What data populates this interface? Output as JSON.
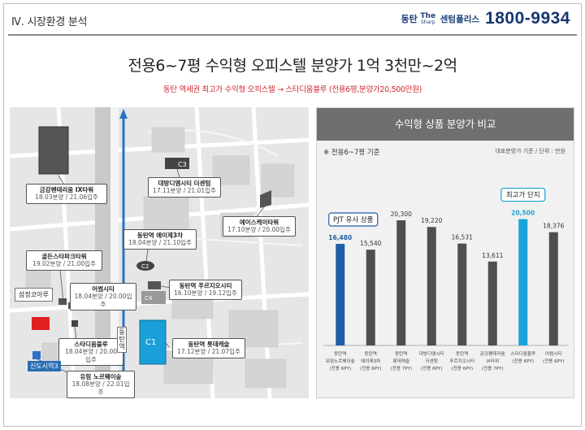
{
  "header": {
    "section": "Ⅳ. 시장환경 분석",
    "brand_name": "동탄",
    "brand_logo_top": "The",
    "brand_logo_bottom": "Sharp",
    "brand_center": "센텀폴리스",
    "phone": "1800-9934"
  },
  "title": "전용6~7평 수익형 오피스텔 분양가 1억 3천만~2억",
  "subtitle": "동탄 역세권 최고가 수익형 오피스텔 → 스타디움블루 (전용6평,분양가20,500만원)",
  "map": {
    "callouts": [
      {
        "name": "금강펜테리움 IX타워",
        "date": "18.03분양 / 21.06입주"
      },
      {
        "name": "대방디엠시티 더센텀",
        "date": "17.11분양 / 21.01입주"
      },
      {
        "name": "에이스케이타워",
        "date": "17.10분양 / 20.00입주"
      },
      {
        "name": "동탄역 에이제3차",
        "date": "18.04분양 / 21.10입주"
      },
      {
        "name": "골든스타파크타워",
        "date": "19.02분양 / 21.00입주"
      },
      {
        "name": "어썸시티",
        "date": "18.04분양 / 20.00입주"
      },
      {
        "name": "동탄역 푸르지오시티",
        "date": "16.10분양 / 19.12입주"
      },
      {
        "name": "스타디움블루",
        "date": "18.04분양 / 20.00입주"
      },
      {
        "name": "동탄역 롯데캐슬",
        "date": "17.12분양 / 21.07입주"
      },
      {
        "name": "유림 노르웨이숲",
        "date": "18.08분양 / 22.01입주"
      }
    ],
    "samjeong": "삼정코아루",
    "station_vertical": "동탄역",
    "station_label": "신도시역3",
    "badge_c3": "C3",
    "badge_c1": "C1",
    "badge_c2": "C2",
    "badge_c4": "C4"
  },
  "panel": {
    "heading": "수익형 상품 분양가 비교",
    "note": "※ 전용6~7평 기준",
    "unit": "대표분양가 기준 / 단위 : 만원",
    "tag_pjt": "PJT 유사 상품",
    "tag_top": "최고가 단지",
    "colors": {
      "blue": "#1f5fa8",
      "cyan": "#1aa3d8",
      "gray": "#4f4f4f"
    }
  },
  "chart_data": {
    "type": "bar",
    "ylabel": "",
    "unit": "만원",
    "categories": [
      [
        "동탄역",
        "유림노르웨이숲",
        "(전용 6PY)"
      ],
      [
        "동탄역",
        "에이제3차",
        "(전용 6PY)"
      ],
      [
        "동탄역",
        "롯데캐슬",
        "(전용 7PY)"
      ],
      [
        "대방디엠시티",
        "더센텀",
        "(전용 6PY)"
      ],
      [
        "동탄역",
        "푸르지오시티",
        "(전용 6PY)"
      ],
      [
        "금강펜테리움",
        "IX타워",
        "(전용 7PY)"
      ],
      [
        "스타디움블루",
        "(전용 6PY)"
      ],
      [
        "어썸시티",
        "(전용 6PY)"
      ]
    ],
    "values": [
      16480,
      15540,
      20300,
      19220,
      16531,
      13611,
      20500,
      18376
    ],
    "value_labels": [
      "16,480",
      "15,540",
      "20,300",
      "19,220",
      "16,531",
      "13,611",
      "20,500",
      "18,376"
    ],
    "highlight": {
      "pjt_similar": 0,
      "highest": 6
    },
    "ylim": [
      0,
      24000
    ]
  }
}
